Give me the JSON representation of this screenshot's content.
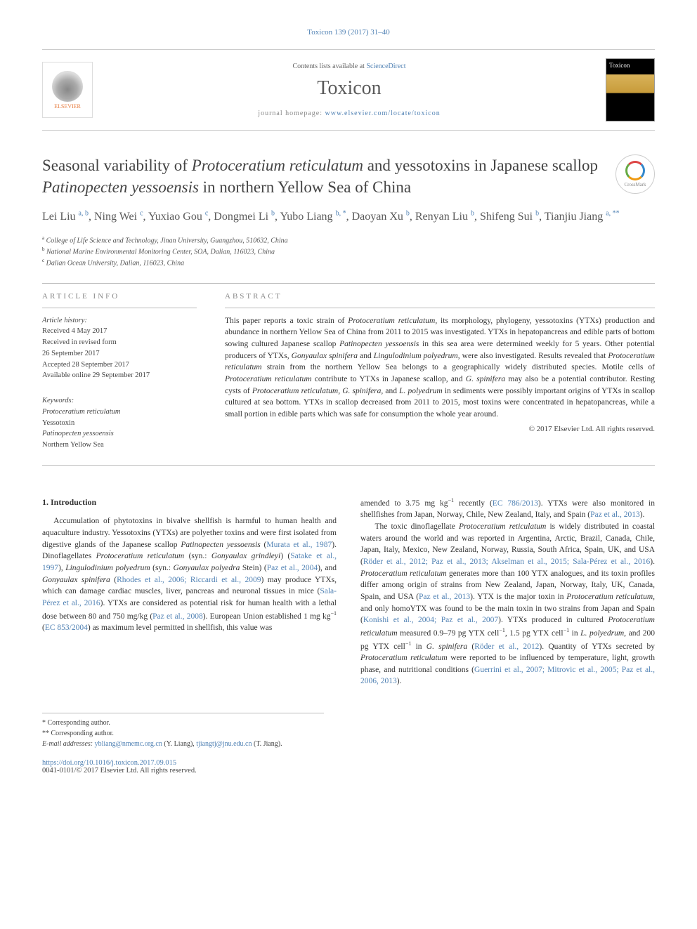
{
  "citation": "Toxicon 139 (2017) 31–40",
  "masthead": {
    "contents_prefix": "Contents lists available at ",
    "contents_link": "ScienceDirect",
    "journal": "Toxicon",
    "homepage_prefix": "journal homepage: ",
    "homepage_url": "www.elsevier.com/locate/toxicon",
    "publisher_label": "ELSEVIER"
  },
  "title_html": "Seasonal variability of <em>Protoceratium reticulatum</em> and yessotoxins in Japanese scallop <em>Patinopecten yessoensis</em> in northern Yellow Sea of China",
  "crossmark_label": "CrossMark",
  "authors_html": "Lei Liu <sup>a, b</sup>, Ning Wei <sup>c</sup>, Yuxiao Gou <sup>c</sup>, Dongmei Li <sup>b</sup>, Yubo Liang <sup>b, *</sup>, Daoyan Xu <sup>b</sup>, Renyan Liu <sup>b</sup>, Shifeng Sui <sup>b</sup>, Tianjiu Jiang <sup>a, **</sup>",
  "affiliations": [
    {
      "sup": "a",
      "text": "College of Life Science and Technology, Jinan University, Guangzhou, 510632, China"
    },
    {
      "sup": "b",
      "text": "National Marine Environmental Monitoring Center, SOA, Dalian, 116023, China"
    },
    {
      "sup": "c",
      "text": "Dalian Ocean University, Dalian, 116023, China"
    }
  ],
  "labels": {
    "article_info": "ARTICLE INFO",
    "abstract": "ABSTRACT"
  },
  "history": {
    "heading": "Article history:",
    "lines": [
      "Received 4 May 2017",
      "Received in revised form",
      "26 September 2017",
      "Accepted 28 September 2017",
      "Available online 29 September 2017"
    ]
  },
  "keywords": {
    "heading": "Keywords:",
    "items_html": [
      "<em>Protoceratium reticulatum</em>",
      "Yessotoxin",
      "<em>Patinopecten yessoensis</em>",
      "Northern Yellow Sea"
    ]
  },
  "abstract_html": "This paper reports a toxic strain of <em>Protoceratium reticulatum</em>, its morphology, phylogeny, yessotoxins (YTXs) production and abundance in northern Yellow Sea of China from 2011 to 2015 was investigated. YTXs in hepatopancreas and edible parts of bottom sowing cultured Japanese scallop <em>Patinopecten yessoensis</em> in this sea area were determined weekly for 5 years. Other potential producers of YTXs, <em>Gonyaulax spinifera</em> and <em>Lingulodinium polyedrum</em>, were also investigated. Results revealed that <em>Protoceratium reticulatum</em> strain from the northern Yellow Sea belongs to a geographically widely distributed species. Motile cells of <em>Protoceratium reticulatum</em> contribute to YTXs in Japanese scallop, and <em>G. spinifera</em> may also be a potential contributor. Resting cysts of <em>Protoceratium reticulatum</em>, <em>G. spinifera</em>, and <em>L. polyedrum</em> in sediments were possibly important origins of YTXs in scallop cultured at sea bottom. YTXs in scallop decreased from 2011 to 2015, most toxins were concentrated in hepatopancreas, while a small portion in edible parts which was safe for consumption the whole year around.",
  "copyright": "© 2017 Elsevier Ltd. All rights reserved.",
  "intro_heading": "1. Introduction",
  "intro_col1_html": "Accumulation of phytotoxins in bivalve shellfish is harmful to human health and aquaculture industry. Yessotoxins (YTXs) are polyether toxins and were first isolated from digestive glands of the Japanese scallop <em>Patinopecten yessoensis</em> (<a class=\"cite\" href=\"#\">Murata et al., 1987</a>). Dinoflagellates <em>Protoceratium reticulatum</em> (syn.: <em>Gonyaulax grindleyi</em>) (<a class=\"cite\" href=\"#\">Satake et al., 1997</a>), <em>Lingulodinium polyedrum</em> (syn.: <em>Gonyaulax polyedra</em> Stein) (<a class=\"cite\" href=\"#\">Paz et al., 2004</a>), and <em>Gonyaulax spinifera</em> (<a class=\"cite\" href=\"#\">Rhodes et al., 2006; Riccardi et al., 2009</a>) may produce YTXs, which can damage cardiac muscles, liver, pancreas and neuronal tissues in mice (<a class=\"cite\" href=\"#\">Sala-Pérez et al., 2016</a>). YTXs are considered as potential risk for human health with a lethal dose between 80 and 750 mg/kg (<a class=\"cite\" href=\"#\">Paz et al., 2008</a>). European Union established 1 mg kg<sup>−1</sup> (<a class=\"cite\" href=\"#\">EC 853/2004</a>) as maximum level permitted in shellfish, this value was",
  "intro_col2_html": "amended to 3.75 mg kg<sup>−1</sup> recently (<a class=\"cite\" href=\"#\">EC 786/2013</a>). YTXs were also monitored in shellfishes from Japan, Norway, Chile, New Zealand, Italy, and Spain (<a class=\"cite\" href=\"#\">Paz et al., 2013</a>).<br>&nbsp;&nbsp;&nbsp;&nbsp;The toxic dinoflagellate <em>Protoceratium reticulatum</em> is widely distributed in coastal waters around the world and was reported in Argentina, Arctic, Brazil, Canada, Chile, Japan, Italy, Mexico, New Zealand, Norway, Russia, South Africa, Spain, UK, and USA (<a class=\"cite\" href=\"#\">Röder et al., 2012; Paz et al., 2013; Akselman et al., 2015; Sala-Pérez et al., 2016</a>). <em>Protoceratium reticulatum</em> generates more than 100 YTX analogues, and its toxin profiles differ among origin of strains from New Zealand, Japan, Norway, Italy, UK, Canada, Spain, and USA (<a class=\"cite\" href=\"#\">Paz et al., 2013</a>). YTX is the major toxin in <em>Protoceratium reticulatum</em>, and only homoYTX was found to be the main toxin in two strains from Japan and Spain (<a class=\"cite\" href=\"#\">Konishi et al., 2004; Paz et al., 2007</a>). YTXs produced in cultured <em>Protoceratium reticulatum</em> measured 0.9–79 pg YTX cell<sup>−1</sup>, 1.5 pg YTX cell<sup>−1</sup> in <em>L. polyedrum</em>, and 200 pg YTX cell<sup>−1</sup> in <em>G. spinifera</em> (<a class=\"cite\" href=\"#\">Röder et al., 2012</a>). Quantity of YTXs secreted by <em>Protoceratium reticulatum</em> were reported to be influenced by temperature, light, growth phase, and nutritional conditions (<a class=\"cite\" href=\"#\">Guerrini et al., 2007; Mitrovic et al., 2005; Paz et al., 2006, 2013</a>).",
  "footnotes": {
    "corr1": "* Corresponding author.",
    "corr2": "** Corresponding author.",
    "email_label": "E-mail addresses:",
    "email1": "ybliang@nmemc.org.cn",
    "email1_paren": "(Y. Liang),",
    "email2": "tjiangtj@jnu.edu.cn",
    "email2_paren": "(T. Jiang)."
  },
  "footer": {
    "doi": "https://doi.org/10.1016/j.toxicon.2017.09.015",
    "issn_line": "0041-0101/© 2017 Elsevier Ltd. All rights reserved."
  },
  "colors": {
    "link": "#5182b4",
    "text": "#333333",
    "muted": "#888888",
    "rule": "#bbbbbb",
    "elsevier_orange": "#e77a3c"
  }
}
